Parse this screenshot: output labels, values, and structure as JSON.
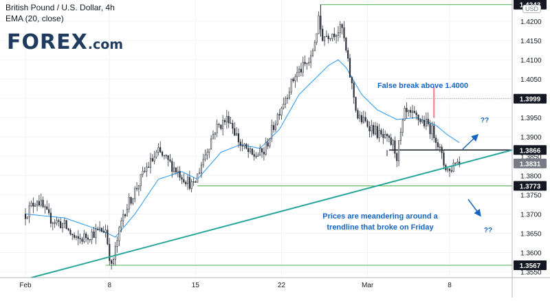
{
  "header": {
    "title": "British Pound / U.S. Dollar, 4h",
    "indicator": "EMA (20, close)",
    "currency": "USD"
  },
  "logo": {
    "main": "FOREX",
    "suffix": ".com"
  },
  "colors": {
    "up": "#26a69a",
    "down": "#ef5350",
    "candle": "#2a2e39",
    "ema": "#2196f3",
    "trend": "#26a69a",
    "level": "#4caf50",
    "annotation": "#1565c0",
    "price_tag_dark": "#131722",
    "price_tag_gray": "#787b86"
  },
  "chart_data": {
    "type": "candlestick",
    "symbol": "GBP/USD",
    "timeframe": "4h",
    "x_tick_labels": [
      "Feb",
      "8",
      "15",
      "22",
      "Mar",
      "8"
    ],
    "y_tick_labels": [
      "1.4200",
      "1.4150",
      "1.4100",
      "1.4050",
      "1.4000",
      "1.3950",
      "1.3900",
      "1.3850",
      "1.3800",
      "1.3750",
      "1.3700",
      "1.3650",
      "1.3600",
      "1.3550"
    ],
    "ylim": [
      1.3535,
      1.4255
    ],
    "grid": true,
    "close_path": [
      [
        0,
        1.37
      ],
      [
        6,
        1.374
      ],
      [
        12,
        1.369
      ],
      [
        20,
        1.367
      ],
      [
        26,
        1.363
      ],
      [
        34,
        1.365
      ],
      [
        41,
        1.366
      ],
      [
        44,
        1.356
      ],
      [
        50,
        1.37
      ],
      [
        56,
        1.376
      ],
      [
        62,
        1.382
      ],
      [
        68,
        1.386
      ],
      [
        74,
        1.383
      ],
      [
        80,
        1.38
      ],
      [
        86,
        1.377
      ],
      [
        90,
        1.383
      ],
      [
        97,
        1.392
      ],
      [
        104,
        1.395
      ],
      [
        110,
        1.388
      ],
      [
        116,
        1.385
      ],
      [
        122,
        1.386
      ],
      [
        130,
        1.397
      ],
      [
        138,
        1.406
      ],
      [
        146,
        1.41
      ],
      [
        150,
        1.42
      ],
      [
        152,
        1.416
      ],
      [
        157,
        1.417
      ],
      [
        162,
        1.418
      ],
      [
        166,
        1.406
      ],
      [
        170,
        1.395
      ],
      [
        176,
        1.393
      ],
      [
        182,
        1.39
      ],
      [
        188,
        1.388
      ],
      [
        190,
        1.385
      ],
      [
        194,
        1.396
      ],
      [
        200,
        1.395
      ],
      [
        206,
        1.393
      ],
      [
        210,
        1.39
      ],
      [
        214,
        1.383
      ],
      [
        217,
        1.381
      ],
      [
        220,
        1.384
      ],
      [
        222,
        1.3831
      ]
    ],
    "ema_path": [
      [
        0,
        1.37
      ],
      [
        20,
        1.369
      ],
      [
        40,
        1.3655
      ],
      [
        46,
        1.364
      ],
      [
        56,
        1.37
      ],
      [
        68,
        1.379
      ],
      [
        80,
        1.381
      ],
      [
        88,
        1.379
      ],
      [
        100,
        1.386
      ],
      [
        110,
        1.388
      ],
      [
        120,
        1.387
      ],
      [
        130,
        1.392
      ],
      [
        140,
        1.401
      ],
      [
        150,
        1.406
      ],
      [
        155,
        1.4085
      ],
      [
        160,
        1.41
      ],
      [
        164,
        1.408
      ],
      [
        172,
        1.401
      ],
      [
        180,
        1.397
      ],
      [
        190,
        1.3945
      ],
      [
        200,
        1.395
      ],
      [
        210,
        1.393
      ],
      [
        216,
        1.3905
      ],
      [
        222,
        1.3885
      ]
    ],
    "ema_label": "EMA (20, close)",
    "price_tags": [
      {
        "value": 1.4243,
        "label": "1.4243",
        "style": "dark"
      },
      {
        "value": 1.3999,
        "label": "1.3999",
        "style": "dark"
      },
      {
        "value": 1.3866,
        "label": "1.3866",
        "style": "dark"
      },
      {
        "value": 1.3831,
        "label": "1.3831",
        "style": "gray"
      },
      {
        "value": 1.3773,
        "label": "1.3773",
        "style": "dark"
      },
      {
        "value": 1.3567,
        "label": "1.3567",
        "style": "dark"
      }
    ],
    "levels": [
      {
        "value": 1.4243,
        "from": 151,
        "label": "high"
      },
      {
        "value": 1.3999,
        "from": 195,
        "style": "dotted"
      },
      {
        "value": 1.3866,
        "from": 186,
        "style": "dark"
      },
      {
        "value": 1.3773,
        "from": 88
      },
      {
        "value": 1.3567,
        "from": 41
      }
    ],
    "trendline": {
      "x1": 3,
      "y1": 1.3535,
      "x2": 249,
      "y2": 1.3866
    },
    "annotations": [
      {
        "text": "False break above 1.4000"
      },
      {
        "text": "??"
      },
      {
        "text": "Prices are meandering around a"
      },
      {
        "text": "trendline that broke on Friday"
      },
      {
        "text": "??"
      }
    ]
  }
}
